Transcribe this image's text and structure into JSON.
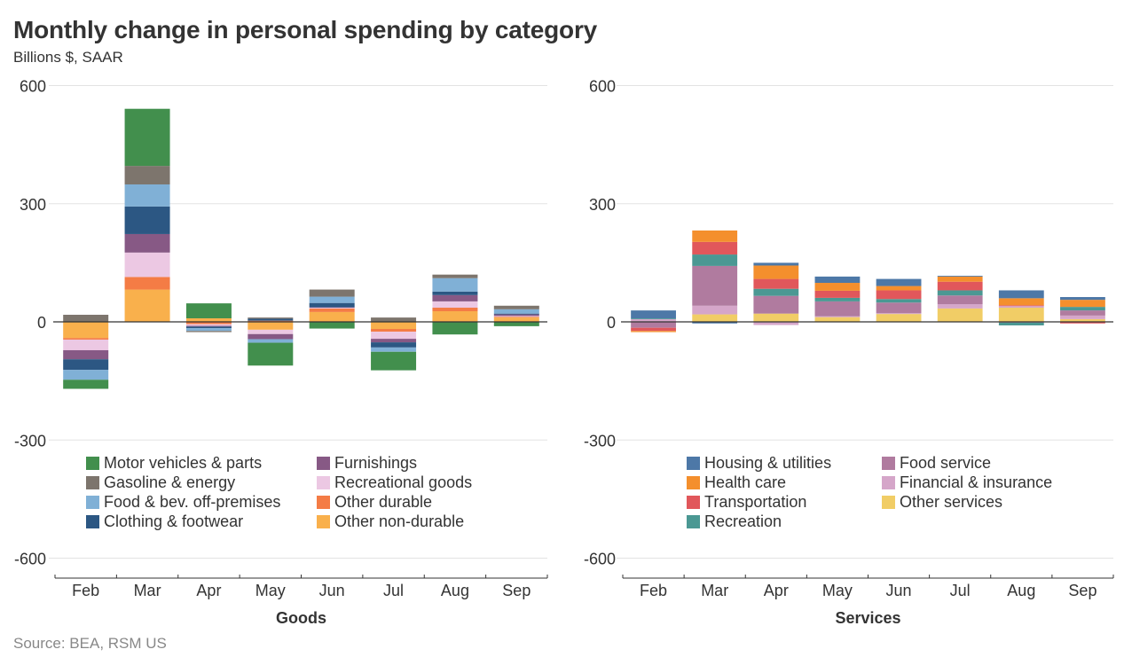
{
  "title": "Monthly change in personal spending by category",
  "subtitle": "Billions $, SAAR",
  "source": "Source: BEA, RSM US",
  "chart_data": [
    {
      "type": "bar",
      "stacked": true,
      "panel": "Goods",
      "xlabel": "Goods",
      "ylabel": "",
      "ylim": [
        -600,
        600
      ],
      "yticks": [
        600,
        300,
        0,
        -300,
        -600
      ],
      "grid": true,
      "legend_position": "bottom",
      "categories": [
        "Feb",
        "Mar",
        "Apr",
        "May",
        "Jun",
        "Jul",
        "Aug",
        "Sep"
      ],
      "series": [
        {
          "name": "Other non-durable",
          "color": "#f9b04c",
          "values": [
            -41,
            82,
            9,
            -20,
            25,
            -18,
            27,
            11
          ]
        },
        {
          "name": "Other durable",
          "color": "#f47c45",
          "values": [
            -4,
            32,
            -6,
            3,
            9,
            -7,
            9,
            2
          ]
        },
        {
          "name": "Recreational goods",
          "color": "#ecc8e3",
          "values": [
            -27,
            62,
            -4,
            -11,
            2,
            -18,
            16,
            2
          ]
        },
        {
          "name": "Furnishings",
          "color": "#875985",
          "values": [
            -23,
            47,
            -2,
            -13,
            1,
            -9,
            16,
            4
          ]
        },
        {
          "name": "Clothing & footwear",
          "color": "#2c5783",
          "values": [
            -27,
            70,
            -4,
            5,
            11,
            -13,
            9,
            2
          ]
        },
        {
          "name": "Food & bev. off-premises",
          "color": "#80b0d6",
          "values": [
            -25,
            56,
            -7,
            -9,
            16,
            -11,
            34,
            11
          ]
        },
        {
          "name": "Gasoline & energy",
          "color": "#7d756d",
          "values": [
            18,
            47,
            -3,
            3,
            18,
            11,
            9,
            9
          ]
        },
        {
          "name": "Motor vehicles & parts",
          "color": "#428f4d",
          "values": [
            -23,
            145,
            38,
            -58,
            -17,
            -47,
            -32,
            -11
          ]
        }
      ],
      "legend": [
        "Motor vehicles & parts",
        "Gasoline & energy",
        "Food & bev. off-premises",
        "Clothing & footwear",
        "Furnishings",
        "Recreational goods",
        "Other durable",
        "Other non-durable"
      ]
    },
    {
      "type": "bar",
      "stacked": true,
      "panel": "Services",
      "xlabel": "Services",
      "ylabel": "",
      "ylim": [
        -600,
        600
      ],
      "yticks": [
        600,
        300,
        0,
        -300,
        -600
      ],
      "grid": true,
      "legend_position": "bottom",
      "categories": [
        "Feb",
        "Mar",
        "Apr",
        "May",
        "Jun",
        "Jul",
        "Aug",
        "Sep"
      ],
      "series": [
        {
          "name": "Other services",
          "color": "#f1cd66",
          "values": [
            0,
            19,
            21,
            12,
            20,
            34,
            36,
            7
          ]
        },
        {
          "name": "Financial & insurance",
          "color": "#d5a6c9",
          "values": [
            7,
            22,
            -8,
            2,
            2,
            11,
            4,
            9
          ]
        },
        {
          "name": "Food service",
          "color": "#b07b9f",
          "values": [
            -15,
            101,
            45,
            38,
            27,
            22,
            -2,
            13
          ]
        },
        {
          "name": "Recreation",
          "color": "#4b9893",
          "values": [
            2,
            29,
            18,
            9,
            9,
            13,
            -7,
            9
          ]
        },
        {
          "name": "Transportation",
          "color": "#e1575b",
          "values": [
            -8,
            32,
            25,
            18,
            22,
            22,
            2,
            -4
          ]
        },
        {
          "name": "Health care",
          "color": "#f48f2d",
          "values": [
            -3,
            29,
            34,
            20,
            11,
            13,
            18,
            18
          ]
        },
        {
          "name": "Housing & utilities",
          "color": "#4d78a7",
          "values": [
            20,
            -4,
            7,
            16,
            18,
            2,
            20,
            7
          ]
        }
      ],
      "legend": [
        "Housing & utilities",
        "Health care",
        "Transportation",
        "Recreation",
        "Food service",
        "Financial & insurance",
        "Other services"
      ]
    }
  ]
}
